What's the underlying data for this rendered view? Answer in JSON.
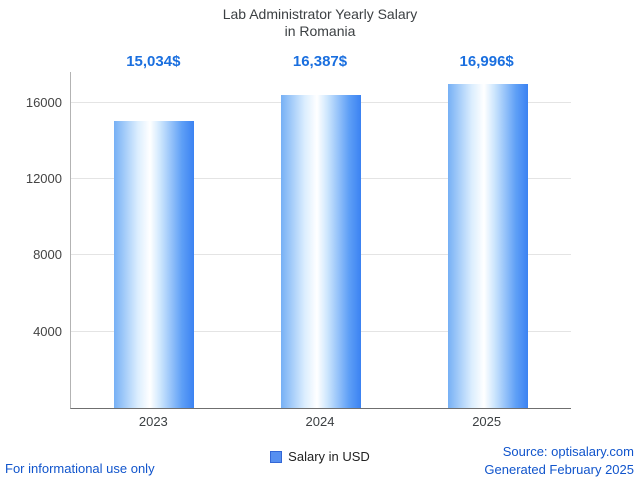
{
  "title": {
    "line1": "Lab Administrator Yearly Salary",
    "line2": "in Romania"
  },
  "chart_data": {
    "type": "bar",
    "title": "Lab Administrator Yearly Salary in Romania",
    "categories": [
      "2023",
      "2024",
      "2025"
    ],
    "values": [
      15034,
      16387,
      16996
    ],
    "value_labels": [
      "15,034$",
      "16,387$",
      "16,996$"
    ],
    "series_name": "Salary in USD",
    "xlabel": "",
    "ylabel": "",
    "ylim": [
      0,
      17600
    ],
    "yticks": [
      4000,
      8000,
      12000,
      16000
    ],
    "grid": true,
    "legend_position": "bottom",
    "bar_gradient": [
      "#76b0f5 0%",
      "#dceefe 30%",
      "#ffffff 45%",
      "#cde6fd 58%",
      "#5e9ff6 85%",
      "#3b82f2 100%"
    ]
  },
  "legend": {
    "label": "Salary in USD",
    "swatch_color": "#568ff0"
  },
  "footer": {
    "left": "For informational use only",
    "source": "Source: optisalary.com",
    "generated": "Generated February 2025"
  },
  "colors": {
    "accent": "#1a6fdf",
    "link": "#1155cc",
    "title": "#3c4043"
  }
}
